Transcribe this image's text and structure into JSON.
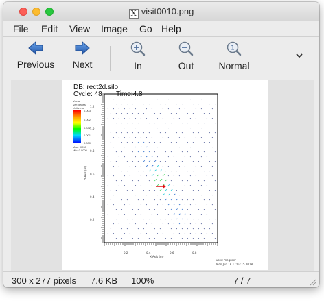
{
  "window": {
    "title": "visit0010.png",
    "title_icon": "X"
  },
  "menu": [
    "File",
    "Edit",
    "View",
    "Image",
    "Go",
    "Help"
  ],
  "toolbar": {
    "previous": "Previous",
    "next": "Next",
    "zoom_in": "In",
    "zoom_out": "Out",
    "zoom_normal": "Normal"
  },
  "image": {
    "db": "DB: rect2d.silo",
    "cycle": "Cycle: 48",
    "time": "Time:4.8",
    "legend_title": "Vec ar",
    "legend_var": "Var: gaussi",
    "legend_units": "Units: ms",
    "legend_max": "Max: .0030",
    "legend_min": "Min: 0.0000",
    "colorbar_ticks": [
      "0.003",
      "0.002",
      "0.002",
      "0.001",
      "0.000"
    ],
    "y_axis_label": "Y-Axis (m)",
    "x_axis_label": "X-Axis (m)",
    "y_ticks": [
      "1.2",
      "1.0",
      "0.8",
      "0.6",
      "0.4",
      "0.2"
    ],
    "x_ticks": [
      "0.2",
      "0.4",
      "0.6",
      "0.8"
    ],
    "footer_user": "user: meguser",
    "footer_date": "Mon Jun 18 17:02:15 2018"
  },
  "status": {
    "dimensions": "300 x 277 pixels",
    "size": "7.6 KB",
    "zoom": "100%",
    "position": "7 / 7"
  },
  "colors": {
    "arrow_blue": "#2f6fce",
    "title_close": "#fc5f57",
    "title_minimize": "#fdbc2e",
    "title_maximize": "#28c840"
  }
}
